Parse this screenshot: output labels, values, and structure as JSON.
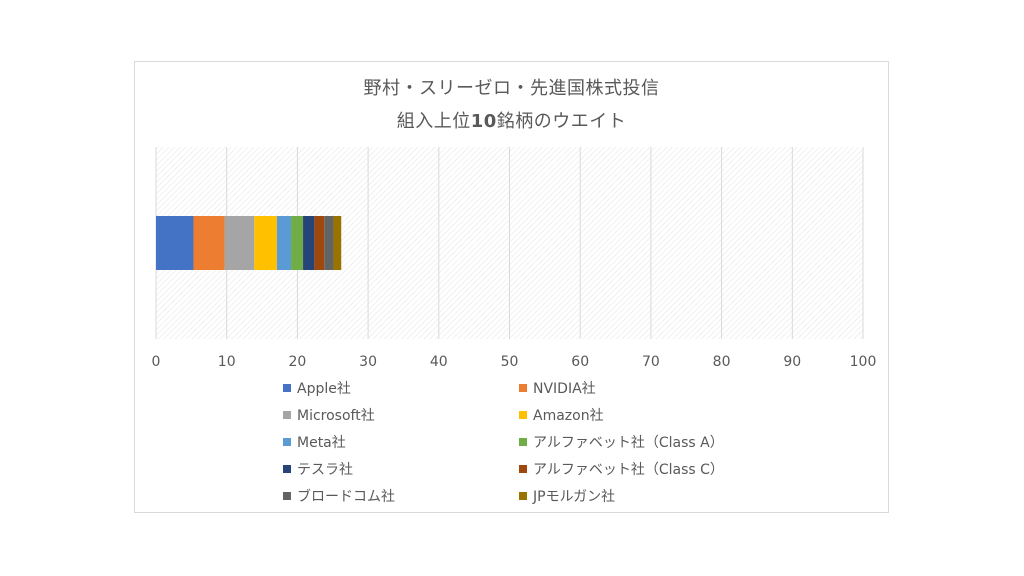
{
  "chart_data": {
    "type": "bar",
    "orientation": "horizontal-stacked",
    "title": "野村・スリーゼロ・先進国株式投信",
    "subtitle": "組入上位10銘柄のウエイト",
    "xlim": [
      0,
      100
    ],
    "xticks": [
      0,
      10,
      20,
      30,
      40,
      50,
      60,
      70,
      80,
      90,
      100
    ],
    "grid": true,
    "legend_position": "bottom",
    "series": [
      {
        "name": "Apple社",
        "value": 5.3,
        "color": "#4472c4"
      },
      {
        "name": "NVIDIA社",
        "value": 4.4,
        "color": "#ed7d31"
      },
      {
        "name": "Microsoft社",
        "value": 4.2,
        "color": "#a5a5a5"
      },
      {
        "name": "Amazon社",
        "value": 3.2,
        "color": "#ffc000"
      },
      {
        "name": "Meta社",
        "value": 2.0,
        "color": "#5b9bd5"
      },
      {
        "name": "アルファベット社（Class A）",
        "value": 1.7,
        "color": "#70ad47"
      },
      {
        "name": "テスラ社",
        "value": 1.6,
        "color": "#264478"
      },
      {
        "name": "アルファベット社（Class C）",
        "value": 1.4,
        "color": "#9e480e"
      },
      {
        "name": "ブロードコム社",
        "value": 1.3,
        "color": "#636363"
      },
      {
        "name": "JPモルガン社",
        "value": 1.1,
        "color": "#997300"
      }
    ]
  }
}
